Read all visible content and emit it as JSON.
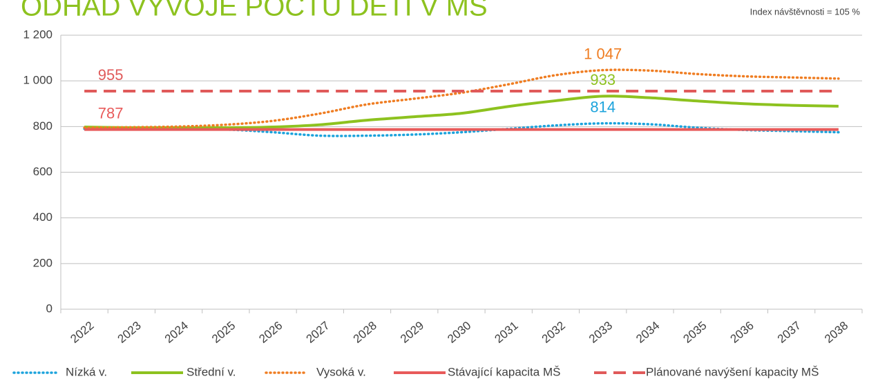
{
  "chart_data": {
    "type": "line",
    "title": "ODHAD VÝVOJE POČTU DĚTÍ V MŠ",
    "subtitle": "Index návštěvnosti = 105 %",
    "categories": [
      "2022",
      "2023",
      "2024",
      "2025",
      "2026",
      "2027",
      "2028",
      "2029",
      "2030",
      "2031",
      "2032",
      "2033",
      "2034",
      "2035",
      "2036",
      "2037",
      "2038"
    ],
    "ylim": [
      0,
      1200
    ],
    "yticks": [
      0,
      200,
      400,
      600,
      800,
      {
        "value": 1000,
        "label": "1 000"
      },
      {
        "value": 1200,
        "label": "1 200"
      }
    ],
    "grid": true,
    "legend": "bottom",
    "series": [
      {
        "name": "Nízká v.",
        "color": "#1ca3dc",
        "dash": "dotted",
        "values": [
          790,
          788,
          790,
          787,
          775,
          760,
          760,
          765,
          775,
          790,
          805,
          814,
          810,
          795,
          785,
          780,
          775
        ],
        "value_labels": [
          null,
          null,
          null,
          null,
          null,
          null,
          null,
          null,
          null,
          null,
          null,
          "814",
          null,
          null,
          null,
          null,
          null
        ]
      },
      {
        "name": "Střední v.",
        "color": "#8dc21f",
        "dash": "solid",
        "values": [
          798,
          795,
          795,
          795,
          798,
          808,
          828,
          843,
          858,
          888,
          913,
          933,
          926,
          912,
          900,
          893,
          889
        ],
        "value_labels": [
          null,
          null,
          null,
          null,
          null,
          null,
          null,
          null,
          null,
          null,
          null,
          "933",
          null,
          null,
          null,
          null,
          null
        ]
      },
      {
        "name": "Vysoká v.",
        "color": "#ef7d22",
        "dash": "dotted",
        "values": [
          795,
          797,
          800,
          808,
          825,
          857,
          897,
          922,
          948,
          985,
          1025,
          1047,
          1045,
          1030,
          1020,
          1015,
          1010
        ],
        "value_labels": [
          null,
          null,
          null,
          null,
          null,
          null,
          null,
          null,
          null,
          null,
          null,
          "1 047",
          null,
          null,
          null,
          null,
          null
        ]
      },
      {
        "name": "Stávající kapacita MŠ",
        "color": "#e85a5a",
        "dash": "solid",
        "values": [
          787,
          787,
          787,
          787,
          787,
          787,
          787,
          787,
          787,
          787,
          787,
          787,
          787,
          787,
          787,
          787,
          787
        ],
        "value_labels": [
          "787",
          null,
          null,
          null,
          null,
          null,
          null,
          null,
          null,
          null,
          null,
          null,
          null,
          null,
          null,
          null,
          null
        ]
      },
      {
        "name": "Plánované navýšení kapacity MŠ",
        "color": "#e05a5a",
        "dash": "dashed",
        "values": [
          955,
          955,
          955,
          955,
          955,
          955,
          955,
          955,
          955,
          955,
          955,
          955,
          955,
          955,
          955,
          955,
          955
        ],
        "value_labels": [
          "955",
          null,
          null,
          null,
          null,
          null,
          null,
          null,
          null,
          null,
          null,
          null,
          null,
          null,
          null,
          null,
          null
        ]
      }
    ]
  }
}
